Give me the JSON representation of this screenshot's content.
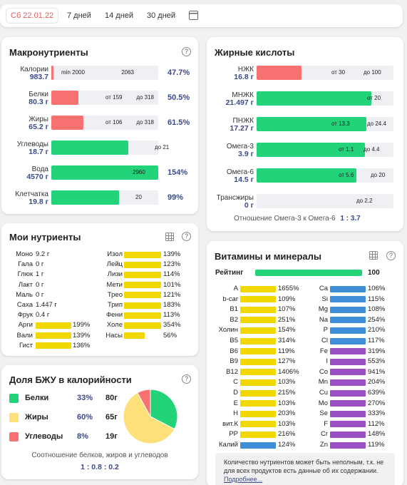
{
  "toolbar": {
    "date": "Сб 22.01.22",
    "periods": [
      "7 дней",
      "14 дней",
      "30 дней"
    ]
  },
  "colors": {
    "red": "#f87171",
    "green": "#22d37a",
    "yellow": "#f0d800",
    "blue": "#3f8fd8",
    "purple": "#9b4fc4"
  },
  "macro": {
    "title": "Макронутриенты",
    "rows": [
      {
        "name": "Калории",
        "value": "983.7",
        "min": "min 2000",
        "max": "2063",
        "pct": "47.7%",
        "fill": 0.02,
        "color": "red"
      },
      {
        "name": "Белки",
        "value": "80.3 г",
        "min": "от 159",
        "max": "до 318",
        "pct": "50.5%",
        "fill": 0.25,
        "color": "red"
      },
      {
        "name": "Жиры",
        "value": "65.2 г",
        "min": "от 106",
        "max": "до 318",
        "pct": "61.5%",
        "fill": 0.3,
        "color": "red"
      },
      {
        "name": "Углеводы",
        "value": "18.7 г",
        "min": "",
        "max": "до 21",
        "pct": "",
        "fill": 0.72,
        "color": "green"
      },
      {
        "name": "Вода",
        "value": "4570 г",
        "min": "",
        "max": "2960",
        "pct": "154%",
        "fill": 1.0,
        "color": "green"
      },
      {
        "name": "Клетчатка",
        "value": "19.8 г",
        "min": "",
        "max": "20",
        "pct": "99%",
        "fill": 0.63,
        "color": "green"
      }
    ]
  },
  "fatty": {
    "title": "Жирные кислоты",
    "rows": [
      {
        "name": "НЖК",
        "value": "16.8 г",
        "min": "от 30",
        "max": "до 100",
        "fill": 0.33,
        "color": "red"
      },
      {
        "name": "МНЖК",
        "value": "21.497 г",
        "min": "",
        "max": "от 20",
        "fill": 0.84,
        "color": "green"
      },
      {
        "name": "ПНЖК",
        "value": "17.27 г",
        "min": "от 13.3",
        "max": "до 24.4",
        "fill": 0.8,
        "color": "green"
      },
      {
        "name": "Омега-3",
        "value": "3.9 г",
        "min": "от 1.1",
        "max": "до 4.4",
        "fill": 0.79,
        "color": "green"
      },
      {
        "name": "Омега-6",
        "value": "14.5 г",
        "min": "от 5.6",
        "max": "до 20",
        "fill": 0.73,
        "color": "green"
      },
      {
        "name": "Трансжиры",
        "value": "0 г",
        "min": "",
        "max": "до 2.2",
        "fill": 0,
        "color": "green"
      }
    ],
    "ratio_label": "Отношение Омега-3 к Омега-6",
    "ratio_value": "1 : 3.7"
  },
  "my": {
    "title": "Мои нутриенты",
    "left": [
      {
        "name": "Моно",
        "value": "9.2 г",
        "pct": "",
        "fill": 0
      },
      {
        "name": "Гала",
        "value": "0 г",
        "pct": "",
        "fill": 0
      },
      {
        "name": "Глюк",
        "value": "1 г",
        "pct": "",
        "fill": 0
      },
      {
        "name": "Лакт",
        "value": "0 г",
        "pct": "",
        "fill": 0
      },
      {
        "name": "Маль",
        "value": "0 г",
        "pct": "",
        "fill": 0
      },
      {
        "name": "Саха",
        "value": "1.447 г",
        "pct": "",
        "fill": 0
      },
      {
        "name": "Фрук",
        "value": "0.4 г",
        "pct": "",
        "fill": 0
      },
      {
        "name": "Арги",
        "value": "",
        "pct": "199%",
        "fill": 1
      },
      {
        "name": "Вали",
        "value": "",
        "pct": "139%",
        "fill": 1
      },
      {
        "name": "Гист",
        "value": "",
        "pct": "136%",
        "fill": 1
      }
    ],
    "right": [
      {
        "name": "Изол",
        "pct": "139%",
        "fill": 1
      },
      {
        "name": "Лейц",
        "pct": "123%",
        "fill": 1
      },
      {
        "name": "Лизи",
        "pct": "114%",
        "fill": 1
      },
      {
        "name": "Мети",
        "pct": "101%",
        "fill": 1
      },
      {
        "name": "Трео",
        "pct": "121%",
        "fill": 1
      },
      {
        "name": "Трип",
        "pct": "183%",
        "fill": 1
      },
      {
        "name": "Фени",
        "pct": "113%",
        "fill": 1
      },
      {
        "name": "Холе",
        "pct": "354%",
        "fill": 1
      },
      {
        "name": "Насы",
        "pct": "56%",
        "fill": 0.56
      }
    ]
  },
  "bju": {
    "title": "Доля БЖУ в калорийности",
    "rows": [
      {
        "name": "Белки",
        "pct": "33%",
        "grams": "80г",
        "color": "#22d37a",
        "share": 33
      },
      {
        "name": "Жиры",
        "pct": "60%",
        "grams": "65г",
        "color": "#fde07a",
        "share": 60
      },
      {
        "name": "Углеводы",
        "pct": "8%",
        "grams": "19г",
        "color": "#f87171",
        "share": 8
      }
    ],
    "ratio_label": "Соотношение белков, жиров и углеводов",
    "ratio_value": "1 : 0.8 : 0.2"
  },
  "vit": {
    "title": "Витамины и минералы",
    "rating_label": "Рейтинг",
    "rating_value": "100",
    "rating_fill": 1,
    "left": [
      {
        "name": "A",
        "pct": "1655%",
        "fill": 1,
        "color": "yellow"
      },
      {
        "name": "b-car",
        "pct": "109%",
        "fill": 1,
        "color": "yellow"
      },
      {
        "name": "B1",
        "pct": "107%",
        "fill": 1,
        "color": "yellow"
      },
      {
        "name": "B2",
        "pct": "251%",
        "fill": 1,
        "color": "yellow"
      },
      {
        "name": "Холин",
        "pct": "154%",
        "fill": 1,
        "color": "yellow"
      },
      {
        "name": "B5",
        "pct": "314%",
        "fill": 1,
        "color": "yellow"
      },
      {
        "name": "B6",
        "pct": "119%",
        "fill": 1,
        "color": "yellow"
      },
      {
        "name": "B9",
        "pct": "127%",
        "fill": 1,
        "color": "yellow"
      },
      {
        "name": "B12",
        "pct": "1406%",
        "fill": 1,
        "color": "yellow"
      },
      {
        "name": "C",
        "pct": "103%",
        "fill": 1,
        "color": "yellow"
      },
      {
        "name": "D",
        "pct": "215%",
        "fill": 1,
        "color": "yellow"
      },
      {
        "name": "E",
        "pct": "103%",
        "fill": 1,
        "color": "yellow"
      },
      {
        "name": "H",
        "pct": "203%",
        "fill": 1,
        "color": "yellow"
      },
      {
        "name": "вит.К",
        "pct": "103%",
        "fill": 1,
        "color": "yellow"
      },
      {
        "name": "PP",
        "pct": "216%",
        "fill": 1,
        "color": "yellow"
      },
      {
        "name": "Калий",
        "pct": "124%",
        "fill": 1,
        "color": "blue"
      }
    ],
    "right": [
      {
        "name": "Ca",
        "pct": "106%",
        "fill": 1,
        "color": "blue"
      },
      {
        "name": "Si",
        "pct": "115%",
        "fill": 1,
        "color": "blue"
      },
      {
        "name": "Mg",
        "pct": "108%",
        "fill": 1,
        "color": "blue"
      },
      {
        "name": "Na",
        "pct": "254%",
        "fill": 1,
        "color": "blue"
      },
      {
        "name": "P",
        "pct": "210%",
        "fill": 1,
        "color": "blue"
      },
      {
        "name": "Cl",
        "pct": "117%",
        "fill": 1,
        "color": "blue"
      },
      {
        "name": "Fe",
        "pct": "319%",
        "fill": 1,
        "color": "purple"
      },
      {
        "name": "I",
        "pct": "553%",
        "fill": 1,
        "color": "purple"
      },
      {
        "name": "Co",
        "pct": "941%",
        "fill": 1,
        "color": "purple"
      },
      {
        "name": "Mn",
        "pct": "204%",
        "fill": 1,
        "color": "purple"
      },
      {
        "name": "Cu",
        "pct": "639%",
        "fill": 1,
        "color": "purple"
      },
      {
        "name": "Mo",
        "pct": "270%",
        "fill": 1,
        "color": "purple"
      },
      {
        "name": "Se",
        "pct": "333%",
        "fill": 1,
        "color": "purple"
      },
      {
        "name": "F",
        "pct": "112%",
        "fill": 1,
        "color": "purple"
      },
      {
        "name": "Cr",
        "pct": "148%",
        "fill": 1,
        "color": "purple"
      },
      {
        "name": "Zn",
        "pct": "119%",
        "fill": 1,
        "color": "purple"
      }
    ],
    "note": "Количество нутриентов может быть неполным, т.к. не для всех продуктов есть данные об их содержании.",
    "more_link": "Подробнее..."
  }
}
